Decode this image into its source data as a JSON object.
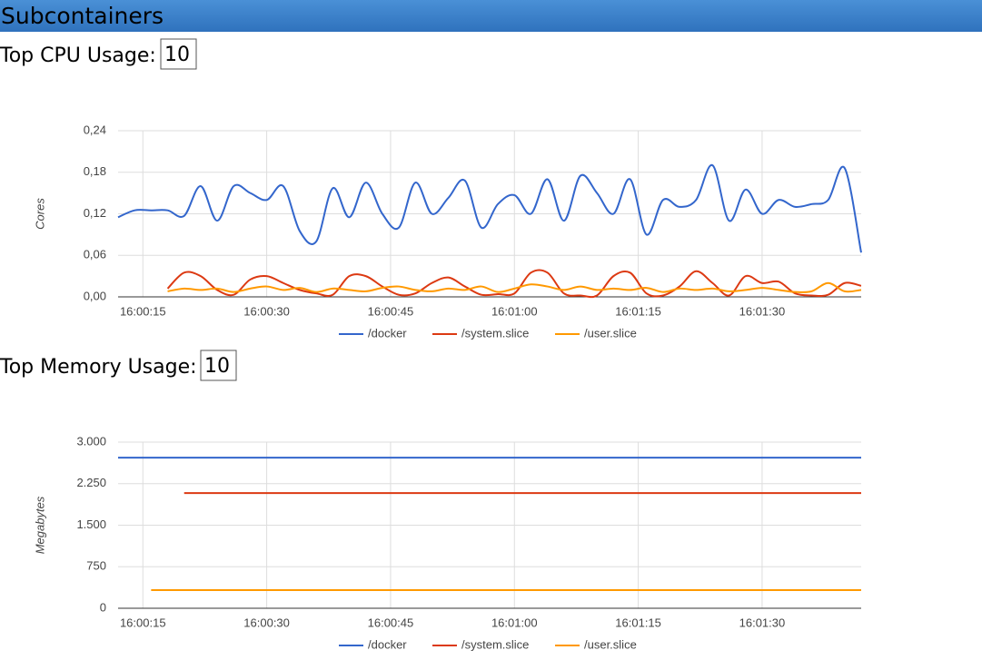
{
  "header": {
    "title": "Subcontainers"
  },
  "controls": [
    {
      "label": "Top CPU Usage:",
      "value": "10"
    },
    {
      "label": "Top Memory Usage:",
      "value": "10"
    }
  ],
  "chart_data": [
    {
      "type": "line",
      "y_label": "Cores",
      "x": [
        "16:00:12",
        "16:00:14",
        "16:00:16",
        "16:00:18",
        "16:00:20",
        "16:00:22",
        "16:00:24",
        "16:00:26",
        "16:00:28",
        "16:00:30",
        "16:00:32",
        "16:00:34",
        "16:00:36",
        "16:00:38",
        "16:00:40",
        "16:00:42",
        "16:00:44",
        "16:00:46",
        "16:00:48",
        "16:00:50",
        "16:00:52",
        "16:00:54",
        "16:00:56",
        "16:00:58",
        "16:01:00",
        "16:01:02",
        "16:01:04",
        "16:01:06",
        "16:01:08",
        "16:01:10",
        "16:01:12",
        "16:01:14",
        "16:01:16",
        "16:01:18",
        "16:01:20",
        "16:01:22",
        "16:01:24",
        "16:01:26",
        "16:01:28",
        "16:01:30",
        "16:01:32",
        "16:01:34",
        "16:01:36",
        "16:01:38",
        "16:01:40",
        "16:01:42"
      ],
      "xlim": [
        "16:00:12",
        "16:01:42"
      ],
      "xticks": [
        "16:00:15",
        "16:00:30",
        "16:00:45",
        "16:01:00",
        "16:01:15",
        "16:01:30"
      ],
      "ylim": [
        0,
        0.24
      ],
      "yticks": [
        {
          "value": 0,
          "label": "0,00"
        },
        {
          "value": 0.06,
          "label": "0,06"
        },
        {
          "value": 0.12,
          "label": "0,12"
        },
        {
          "value": 0.18,
          "label": "0,18"
        },
        {
          "value": 0.24,
          "label": "0,24"
        }
      ],
      "grid": true,
      "series": [
        {
          "name": "/docker",
          "color": "#3366cc",
          "values": [
            0.115,
            0.125,
            0.125,
            0.125,
            0.117,
            0.16,
            0.11,
            0.16,
            0.15,
            0.14,
            0.16,
            0.095,
            0.08,
            0.157,
            0.115,
            0.165,
            0.12,
            0.1,
            0.165,
            0.12,
            0.143,
            0.168,
            0.1,
            0.134,
            0.147,
            0.12,
            0.17,
            0.11,
            0.175,
            0.15,
            0.12,
            0.17,
            0.09,
            0.14,
            0.13,
            0.14,
            0.19,
            0.11,
            0.155,
            0.12,
            0.14,
            0.13,
            0.134,
            0.14,
            0.186,
            0.064
          ]
        },
        {
          "name": "/system.slice",
          "color": "#dc3912",
          "values": [
            null,
            null,
            null,
            0.012,
            0.035,
            0.03,
            0.01,
            0.003,
            0.025,
            0.03,
            0.02,
            0.01,
            0.005,
            0.003,
            0.03,
            0.03,
            0.015,
            0.003,
            0.005,
            0.02,
            0.028,
            0.015,
            0.003,
            0.004,
            0.005,
            0.035,
            0.035,
            0.005,
            0.002,
            0.002,
            0.03,
            0.035,
            0.005,
            0.002,
            0.015,
            0.037,
            0.02,
            0.002,
            0.03,
            0.02,
            0.022,
            0.005,
            0.002,
            0.003,
            0.02,
            0.016
          ]
        },
        {
          "name": "/user.slice",
          "color": "#ff9900",
          "values": [
            null,
            null,
            null,
            0.008,
            0.012,
            0.01,
            0.012,
            0.007,
            0.012,
            0.015,
            0.01,
            0.013,
            0.007,
            0.012,
            0.01,
            0.008,
            0.013,
            0.015,
            0.01,
            0.008,
            0.012,
            0.01,
            0.015,
            0.007,
            0.012,
            0.018,
            0.015,
            0.01,
            0.015,
            0.01,
            0.012,
            0.01,
            0.013,
            0.007,
            0.012,
            0.01,
            0.012,
            0.008,
            0.01,
            0.013,
            0.01,
            0.007,
            0.008,
            0.02,
            0.008,
            0.01
          ]
        }
      ]
    },
    {
      "type": "line",
      "y_label": "Megabytes",
      "x": [
        "16:00:12",
        "16:00:14",
        "16:00:16",
        "16:00:18",
        "16:00:20",
        "16:00:22",
        "16:00:24",
        "16:00:26",
        "16:00:28",
        "16:00:30",
        "16:00:32",
        "16:00:34",
        "16:00:36",
        "16:00:38",
        "16:00:40",
        "16:00:42",
        "16:00:44",
        "16:00:46",
        "16:00:48",
        "16:00:50",
        "16:00:52",
        "16:00:54",
        "16:00:56",
        "16:00:58",
        "16:01:00",
        "16:01:02",
        "16:01:04",
        "16:01:06",
        "16:01:08",
        "16:01:10",
        "16:01:12",
        "16:01:14",
        "16:01:16",
        "16:01:18",
        "16:01:20",
        "16:01:22",
        "16:01:24",
        "16:01:26",
        "16:01:28",
        "16:01:30",
        "16:01:32",
        "16:01:34",
        "16:01:36",
        "16:01:38",
        "16:01:40",
        "16:01:42"
      ],
      "xlim": [
        "16:00:12",
        "16:01:42"
      ],
      "xticks": [
        "16:00:15",
        "16:00:30",
        "16:00:45",
        "16:01:00",
        "16:01:15",
        "16:01:30"
      ],
      "ylim": [
        0,
        3000
      ],
      "yticks": [
        0,
        750,
        {
          "value": 1500,
          "label": "1.500"
        },
        {
          "value": 2250,
          "label": "2.250"
        },
        {
          "value": 3000,
          "label": "3.000"
        }
      ],
      "grid": true,
      "series": [
        {
          "name": "/docker",
          "color": "#3366cc",
          "values": [
            2720,
            2720,
            2720,
            2720,
            2720,
            2720,
            2720,
            2720,
            2720,
            2720,
            2720,
            2720,
            2720,
            2720,
            2720,
            2720,
            2720,
            2720,
            2720,
            2720,
            2720,
            2720,
            2720,
            2720,
            2720,
            2720,
            2720,
            2720,
            2720,
            2720,
            2720,
            2720,
            2720,
            2720,
            2720,
            2720,
            2720,
            2720,
            2720,
            2720,
            2720,
            2720,
            2720,
            2720,
            2720,
            2720
          ]
        },
        {
          "name": "/system.slice",
          "color": "#dc3912",
          "values": [
            null,
            null,
            null,
            null,
            2080,
            2080,
            2080,
            2080,
            2080,
            2080,
            2080,
            2080,
            2080,
            2080,
            2080,
            2080,
            2080,
            2080,
            2080,
            2080,
            2080,
            2080,
            2080,
            2080,
            2080,
            2080,
            2080,
            2080,
            2080,
            2080,
            2080,
            2080,
            2080,
            2080,
            2080,
            2080,
            2080,
            2080,
            2080,
            2080,
            2080,
            2080,
            2080,
            2080,
            2080,
            2080
          ]
        },
        {
          "name": "/user.slice",
          "color": "#ff9900",
          "values": [
            null,
            null,
            328,
            328,
            328,
            328,
            328,
            328,
            328,
            328,
            328,
            328,
            328,
            328,
            328,
            328,
            328,
            328,
            328,
            328,
            328,
            328,
            328,
            328,
            328,
            328,
            328,
            328,
            328,
            328,
            328,
            328,
            328,
            328,
            328,
            328,
            328,
            328,
            328,
            328,
            328,
            328,
            328,
            328,
            328,
            328
          ]
        }
      ]
    }
  ]
}
